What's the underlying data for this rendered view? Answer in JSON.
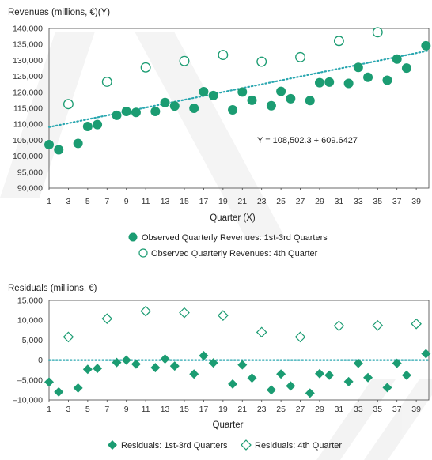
{
  "chart_data": [
    {
      "type": "scatter",
      "title": "",
      "ylabel": "Revenues (millions, €)(Y)",
      "xlabel": "Quarter (X)",
      "xlim": [
        1,
        40.3
      ],
      "ylim": [
        90000,
        140000
      ],
      "yticks": [
        90000,
        95000,
        100000,
        105000,
        110000,
        115000,
        120000,
        125000,
        130000,
        135000,
        140000
      ],
      "ytick_labels": [
        "90,000",
        "95,000",
        "100,000",
        "105,000",
        "110,000",
        "115,000",
        "120,000",
        "125,000",
        "130,000",
        "135,000",
        "140,000"
      ],
      "xticks": [
        1,
        3,
        5,
        7,
        9,
        11,
        13,
        15,
        17,
        19,
        21,
        23,
        25,
        27,
        29,
        31,
        33,
        35,
        37,
        39
      ],
      "grid": false,
      "legend_position": "bottom",
      "annotation": "Y = 108,502.3 + 609.6427",
      "trendline": {
        "intercept": 108502.3,
        "slope": 609.6427,
        "style": "dotted",
        "color": "#2aa7b0"
      },
      "series": [
        {
          "name": "Observed Quarterly Revenues: 1st-3rd Quarters",
          "marker": "filled-circle",
          "color": "#1b9c72",
          "x": [
            1,
            2,
            4,
            5,
            6,
            8,
            9,
            10,
            12,
            13,
            14,
            16,
            17,
            18,
            20,
            21,
            22,
            24,
            25,
            26,
            28,
            29,
            30,
            32,
            33,
            34,
            36,
            37,
            38,
            40
          ],
          "y": [
            103600,
            102000,
            104000,
            109300,
            109900,
            112800,
            114000,
            113700,
            114000,
            116800,
            115700,
            115000,
            120200,
            119000,
            114500,
            120100,
            117500,
            115800,
            120300,
            118000,
            117400,
            123000,
            123200,
            122800,
            127800,
            124700,
            123800,
            130400,
            127600,
            134600
          ]
        },
        {
          "name": "Observed Quarterly Revenues: 4th Quarter",
          "marker": "open-circle",
          "color": "#1b9c72",
          "x": [
            3,
            7,
            11,
            15,
            19,
            23,
            27,
            31,
            35
          ],
          "y": [
            116300,
            123300,
            127800,
            129800,
            131700,
            129600,
            131000,
            136100,
            138800
          ]
        }
      ]
    },
    {
      "type": "scatter",
      "title": "",
      "ylabel": "Residuals (millions, €)",
      "xlabel": "Quarter",
      "xlim": [
        1,
        40.3
      ],
      "ylim": [
        -10000,
        15000
      ],
      "yticks": [
        -10000,
        -5000,
        0,
        5000,
        10000,
        15000
      ],
      "ytick_labels": [
        "–10,000",
        "–5,000",
        "0",
        "5,000",
        "10,000",
        "15,000"
      ],
      "xticks": [
        1,
        3,
        5,
        7,
        9,
        11,
        13,
        15,
        17,
        19,
        21,
        23,
        25,
        27,
        29,
        31,
        33,
        35,
        37,
        39
      ],
      "grid": false,
      "legend_position": "bottom",
      "zero_line": {
        "style": "dotted",
        "color": "#2aa7b0"
      },
      "series": [
        {
          "name": "Residuals: 1st-3rd Quarters",
          "marker": "filled-diamond",
          "color": "#1b9c72",
          "x": [
            1,
            2,
            4,
            5,
            6,
            8,
            9,
            10,
            12,
            13,
            14,
            16,
            17,
            18,
            20,
            21,
            22,
            24,
            25,
            26,
            28,
            29,
            30,
            32,
            33,
            34,
            36,
            37,
            38,
            40
          ],
          "y": [
            -5500,
            -8000,
            -7000,
            -2300,
            -2100,
            -600,
            0,
            -1000,
            -1900,
            300,
            -1500,
            -3500,
            1100,
            -700,
            -6000,
            -1200,
            -4500,
            -7500,
            -3500,
            -6500,
            -8300,
            -3400,
            -3800,
            -5400,
            -800,
            -4400,
            -6900,
            -800,
            -3800,
            1600
          ]
        },
        {
          "name": "Residuals: 4th Quarter",
          "marker": "open-diamond",
          "color": "#1b9c72",
          "x": [
            3,
            7,
            11,
            15,
            19,
            23,
            27,
            31,
            35,
            39
          ],
          "y": [
            5800,
            10400,
            12300,
            11900,
            11200,
            7000,
            5800,
            8600,
            8700,
            9100
          ]
        }
      ]
    }
  ]
}
